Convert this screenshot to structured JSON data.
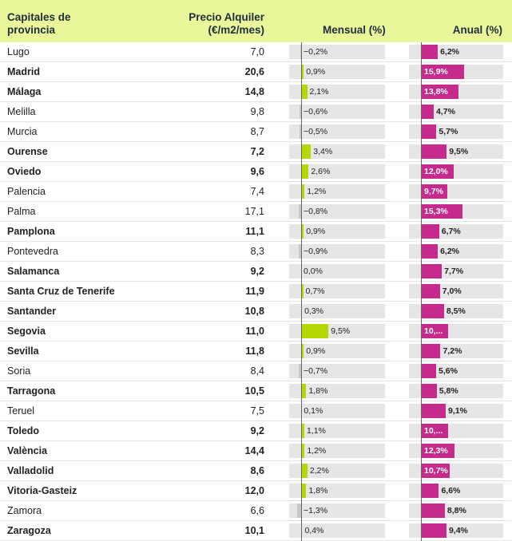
{
  "header": {
    "city_line1": "Capitales de",
    "city_line2": "provincia",
    "price_line1": "Precio Alquiler",
    "price_line2": "(€/m2/mes)",
    "monthly": "Mensual (%)",
    "annual": "Anual (%)"
  },
  "colors": {
    "header_bg": "#e9f69a",
    "monthly_positive": "#b5d800",
    "monthly_negative": "#c8c8c8",
    "annual_bar": "#c62a8c",
    "track": "#e6e6e6"
  },
  "chart_data": {
    "type": "table",
    "columns": [
      "Capitales de provincia",
      "Precio Alquiler (€/m2/mes)",
      "Mensual (%)",
      "Anual (%)"
    ],
    "monthly_range": [
      -1.3,
      9.5
    ],
    "annual_range": [
      0,
      15.9
    ],
    "rows": [
      {
        "city": "Lugo",
        "price": "7,0",
        "monthly": -0.2,
        "monthly_label": "−0,2%",
        "annual": 6.2,
        "annual_label": "6,2%",
        "bold": false
      },
      {
        "city": "Madrid",
        "price": "20,6",
        "monthly": 0.9,
        "monthly_label": "0,9%",
        "annual": 15.9,
        "annual_label": "15,9%",
        "bold": true
      },
      {
        "city": "Málaga",
        "price": "14,8",
        "monthly": 2.1,
        "monthly_label": "2,1%",
        "annual": 13.8,
        "annual_label": "13,8%",
        "bold": true
      },
      {
        "city": "Melilla",
        "price": "9,8",
        "monthly": -0.6,
        "monthly_label": "−0,6%",
        "annual": 4.7,
        "annual_label": "4,7%",
        "bold": false
      },
      {
        "city": "Murcia",
        "price": "8,7",
        "monthly": -0.5,
        "monthly_label": "−0,5%",
        "annual": 5.7,
        "annual_label": "5,7%",
        "bold": false
      },
      {
        "city": "Ourense",
        "price": "7,2",
        "monthly": 3.4,
        "monthly_label": "3,4%",
        "annual": 9.5,
        "annual_label": "9,5%",
        "bold": true
      },
      {
        "city": "Oviedo",
        "price": "9,6",
        "monthly": 2.6,
        "monthly_label": "2,6%",
        "annual": 12.0,
        "annual_label": "12,0%",
        "bold": true
      },
      {
        "city": "Palencia",
        "price": "7,4",
        "monthly": 1.2,
        "monthly_label": "1,2%",
        "annual": 9.7,
        "annual_label": "9,7%",
        "bold": false
      },
      {
        "city": "Palma",
        "price": "17,1",
        "monthly": -0.8,
        "monthly_label": "−0,8%",
        "annual": 15.3,
        "annual_label": "15,3%",
        "bold": false
      },
      {
        "city": "Pamplona",
        "price": "11,1",
        "monthly": 0.9,
        "monthly_label": "0,9%",
        "annual": 6.7,
        "annual_label": "6,7%",
        "bold": true
      },
      {
        "city": "Pontevedra",
        "price": "8,3",
        "monthly": -0.9,
        "monthly_label": "−0,9%",
        "annual": 6.2,
        "annual_label": "6,2%",
        "bold": false
      },
      {
        "city": "Salamanca",
        "price": "9,2",
        "monthly": 0.0,
        "monthly_label": "0,0%",
        "annual": 7.7,
        "annual_label": "7,7%",
        "bold": true
      },
      {
        "city": "Santa Cruz de Tenerife",
        "price": "11,9",
        "monthly": 0.7,
        "monthly_label": "0,7%",
        "annual": 7.0,
        "annual_label": "7,0%",
        "bold": true
      },
      {
        "city": "Santander",
        "price": "10,8",
        "monthly": 0.3,
        "monthly_label": "0,3%",
        "annual": 8.5,
        "annual_label": "8,5%",
        "bold": true
      },
      {
        "city": "Segovia",
        "price": "11,0",
        "monthly": 9.5,
        "monthly_label": "9,5%",
        "annual": 10.0,
        "annual_label": "10,...",
        "bold": true
      },
      {
        "city": "Sevilla",
        "price": "11,8",
        "monthly": 0.9,
        "monthly_label": "0,9%",
        "annual": 7.2,
        "annual_label": "7,2%",
        "bold": true
      },
      {
        "city": "Soria",
        "price": "8,4",
        "monthly": -0.7,
        "monthly_label": "−0,7%",
        "annual": 5.6,
        "annual_label": "5,6%",
        "bold": false
      },
      {
        "city": "Tarragona",
        "price": "10,5",
        "monthly": 1.8,
        "monthly_label": "1,8%",
        "annual": 5.8,
        "annual_label": "5,8%",
        "bold": true
      },
      {
        "city": "Teruel",
        "price": "7,5",
        "monthly": 0.1,
        "monthly_label": "0,1%",
        "annual": 9.1,
        "annual_label": "9,1%",
        "bold": false
      },
      {
        "city": "Toledo",
        "price": "9,2",
        "monthly": 1.1,
        "monthly_label": "1,1%",
        "annual": 10.0,
        "annual_label": "10,...",
        "bold": true
      },
      {
        "city": "València",
        "price": "14,4",
        "monthly": 1.2,
        "monthly_label": "1,2%",
        "annual": 12.3,
        "annual_label": "12,3%",
        "bold": true
      },
      {
        "city": "Valladolid",
        "price": "8,6",
        "monthly": 2.2,
        "monthly_label": "2,2%",
        "annual": 10.7,
        "annual_label": "10,7%",
        "bold": true
      },
      {
        "city": "Vitoria-Gasteiz",
        "price": "12,0",
        "monthly": 1.8,
        "monthly_label": "1,8%",
        "annual": 6.6,
        "annual_label": "6,6%",
        "bold": true
      },
      {
        "city": "Zamora",
        "price": "6,6",
        "monthly": -1.3,
        "monthly_label": "−1,3%",
        "annual": 8.8,
        "annual_label": "8,8%",
        "bold": false
      },
      {
        "city": "Zaragoza",
        "price": "10,1",
        "monthly": 0.4,
        "monthly_label": "0,4%",
        "annual": 9.4,
        "annual_label": "9,4%",
        "bold": true
      }
    ]
  }
}
